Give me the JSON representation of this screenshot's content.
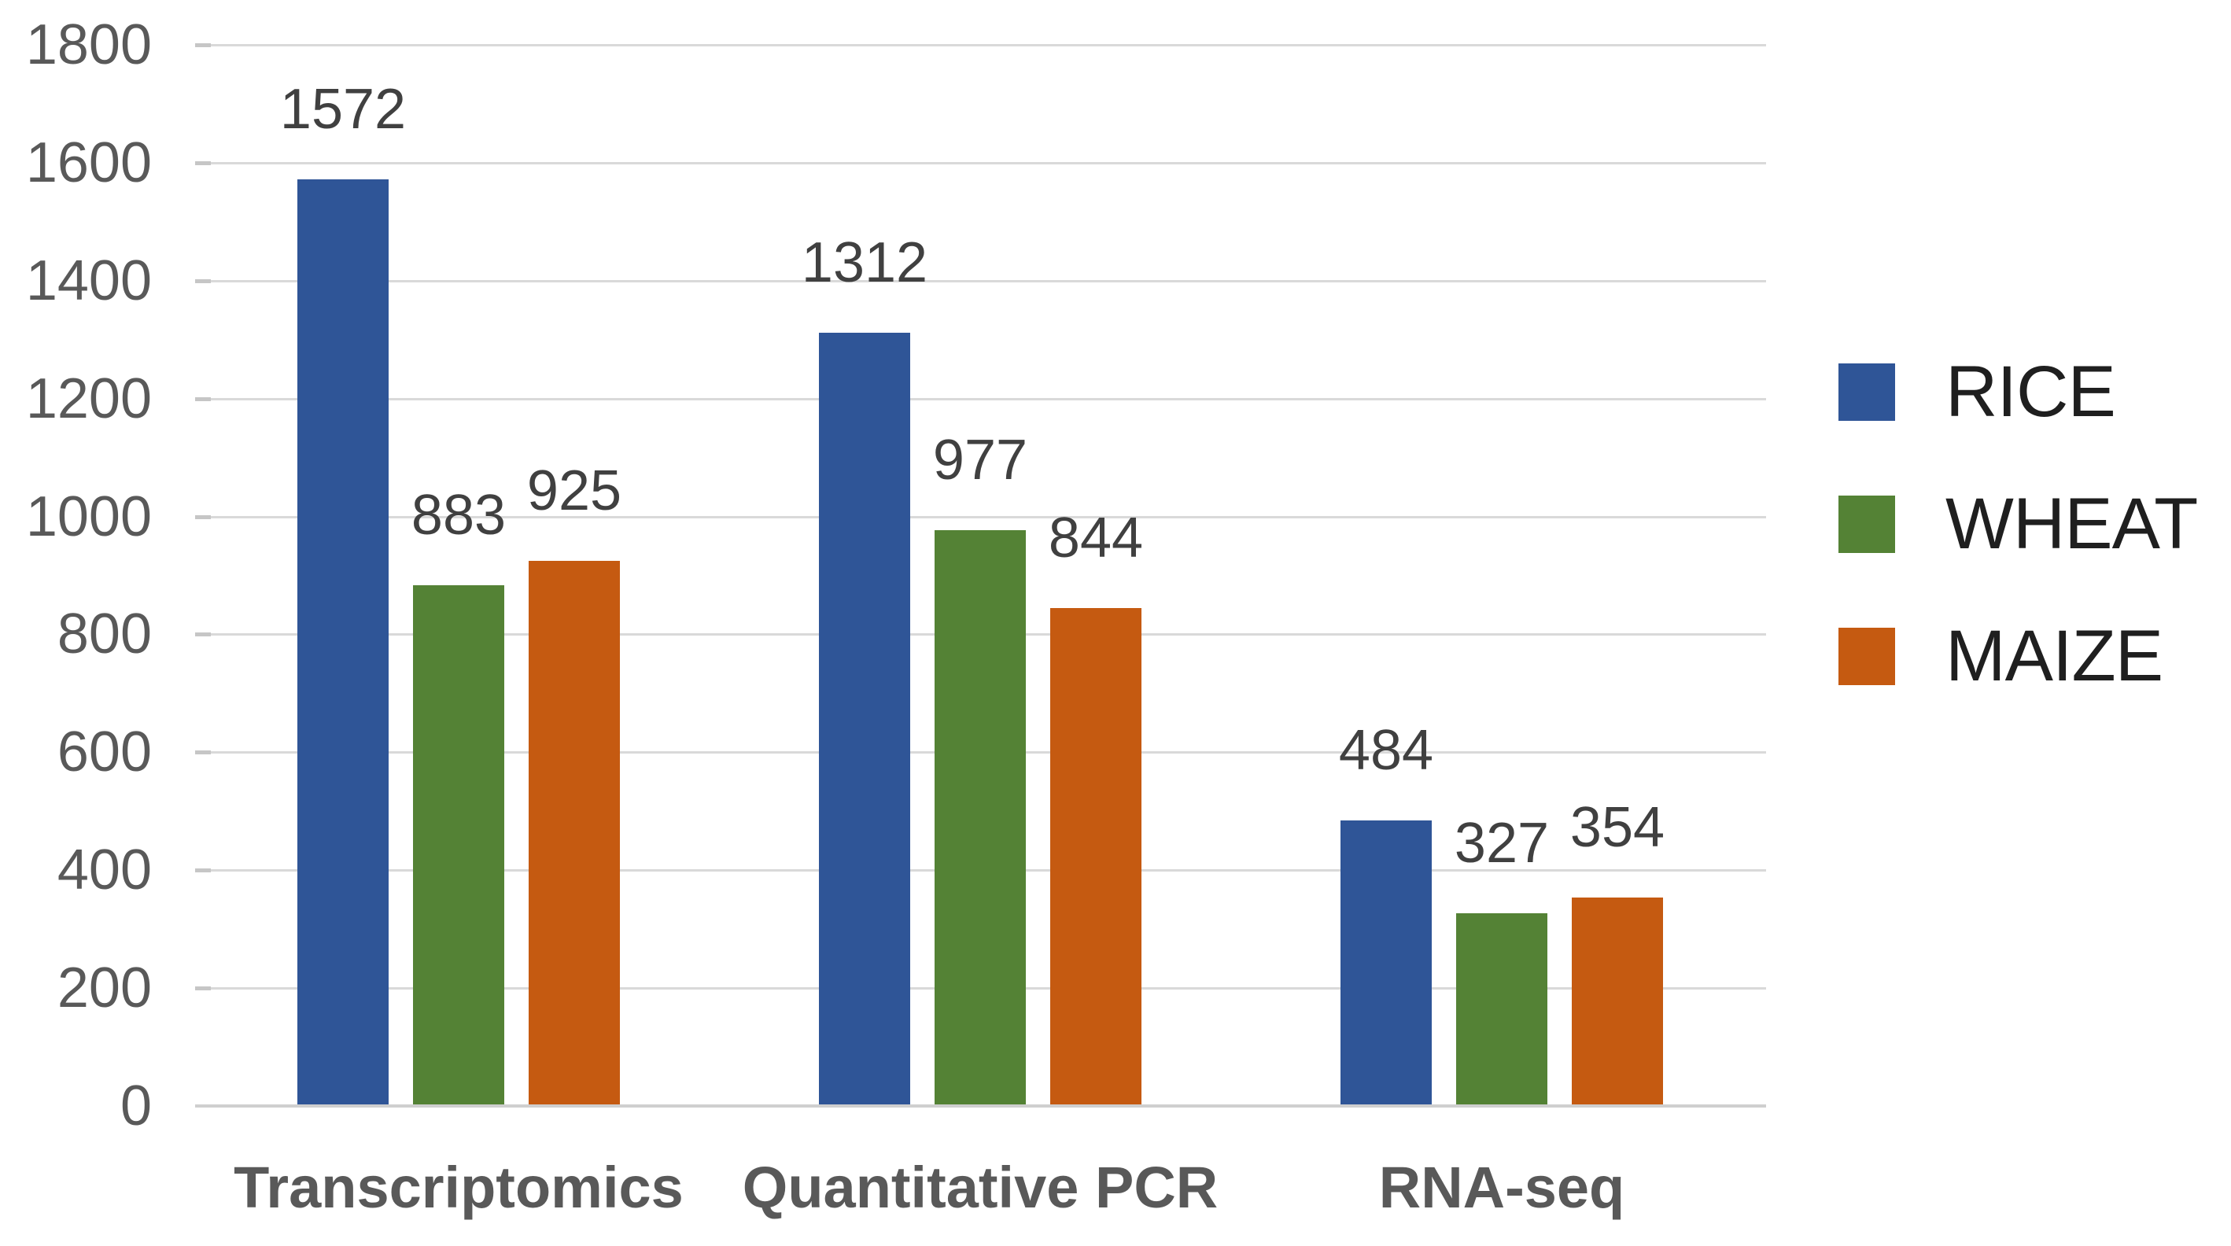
{
  "chart_data": {
    "type": "bar",
    "title": "",
    "categories": [
      "Transcriptomics",
      "Quantitative PCR",
      "RNA-seq"
    ],
    "series": [
      {
        "name": "RICE",
        "color": "#2F5597",
        "values": [
          1572,
          1312,
          484
        ]
      },
      {
        "name": "WHEAT",
        "color": "#548235",
        "values": [
          883,
          977,
          327
        ]
      },
      {
        "name": "MAIZE",
        "color": "#C55A11",
        "values": [
          925,
          844,
          354
        ]
      }
    ],
    "y_axis": {
      "min": 0,
      "max": 1800,
      "step": 200,
      "ticks": [
        0,
        200,
        400,
        600,
        800,
        1000,
        1200,
        1400,
        1600,
        1800
      ]
    },
    "grid": true,
    "data_labels": true,
    "legend_position": "right",
    "style": {
      "background": "#FFFFFF",
      "gridline_color": "#D9D9D9",
      "axis_line_color": "#CFCFCF",
      "axis_label_color": "#595959",
      "data_label_color": "#404040",
      "category_label_color": "#595959",
      "legend_text_color": "#1F1F1F"
    }
  }
}
